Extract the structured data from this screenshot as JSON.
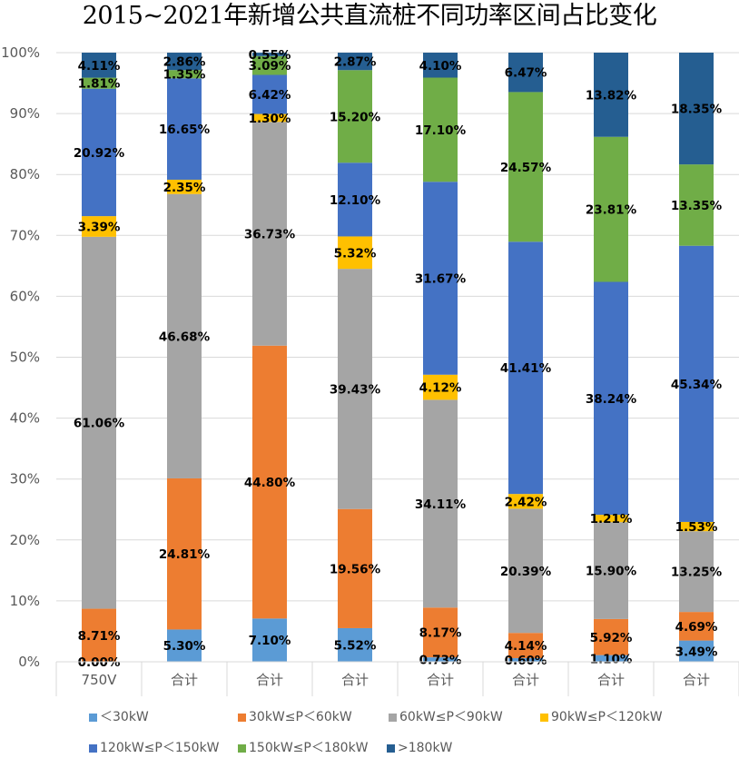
{
  "chart_data": {
    "type": "bar",
    "stacked": true,
    "percent_stacked": true,
    "title": "2015~2021年新增公共直流桩不同功率区间占比变化",
    "xlabel": "",
    "ylabel": "",
    "ylim": [
      0,
      100
    ],
    "yticks": [
      "0%",
      "10%",
      "20%",
      "30%",
      "40%",
      "50%",
      "60%",
      "70%",
      "80%",
      "90%",
      "100%"
    ],
    "grid": true,
    "legend_position": "bottom",
    "categories": [
      "750V",
      "合计",
      "合计",
      "合计",
      "合计",
      "合计",
      "合计",
      "合计"
    ],
    "series": [
      {
        "name": "<30kW",
        "legend_label": "＜30kW",
        "color": "#5B9BD5",
        "values": [
          0.0,
          5.3,
          7.1,
          5.52,
          0.73,
          0.6,
          1.1,
          3.49
        ],
        "labels": [
          "0.00%",
          "5.30%",
          "7.10%",
          "5.52%",
          "0.73%",
          "0.60%",
          "1.10%",
          "3.49%"
        ]
      },
      {
        "name": "30kW≤P<60kW",
        "legend_label": "30kW≤P＜60kW",
        "color": "#ED7D31",
        "values": [
          8.71,
          24.81,
          44.8,
          19.56,
          8.17,
          4.14,
          5.92,
          4.69
        ],
        "labels": [
          "8.71%",
          "24.81%",
          "44.80%",
          "19.56%",
          "8.17%",
          "4.14%",
          "5.92%",
          "4.69%"
        ]
      },
      {
        "name": "60kW≤P<90kW",
        "legend_label": "60kW≤P＜90kW",
        "color": "#A5A5A5",
        "values": [
          61.06,
          46.68,
          36.73,
          39.43,
          34.11,
          20.39,
          15.9,
          13.25
        ],
        "labels": [
          "61.06%",
          "46.68%",
          "36.73%",
          "39.43%",
          "34.11%",
          "20.39%",
          "15.90%",
          "13.25%"
        ]
      },
      {
        "name": "90kW≤P<120kW",
        "legend_label": "90kW≤P＜120kW",
        "color": "#FFC000",
        "values": [
          3.39,
          2.35,
          1.3,
          5.32,
          4.12,
          2.42,
          1.21,
          1.53
        ],
        "labels": [
          "3.39%",
          "2.35%",
          "1.30%",
          "5.32%",
          "4.12%",
          "2.42%",
          "1.21%",
          "1.53%"
        ]
      },
      {
        "name": "120kW≤P<150kW",
        "legend_label": "120kW≤P＜150kW",
        "color": "#4472C4",
        "values": [
          20.92,
          16.65,
          6.42,
          12.1,
          31.67,
          41.41,
          38.24,
          45.34
        ],
        "labels": [
          "20.92%",
          "16.65%",
          "6.42%",
          "12.10%",
          "31.67%",
          "41.41%",
          "38.24%",
          "45.34%"
        ]
      },
      {
        "name": "150kW≤P<180kW",
        "legend_label": "150kW≤P＜180kW",
        "color": "#70AD47",
        "values": [
          1.81,
          1.35,
          3.09,
          15.2,
          17.1,
          24.57,
          23.81,
          13.35
        ],
        "labels": [
          "1.81%",
          "1.35%",
          "3.09%",
          "15.20%",
          "17.10%",
          "24.57%",
          "23.81%",
          "13.35%"
        ]
      },
      {
        "name": ">180kW",
        "legend_label": ">180kW",
        "color": "#255E91",
        "values": [
          4.11,
          2.86,
          0.55,
          2.87,
          4.1,
          6.47,
          13.82,
          18.35
        ],
        "labels": [
          "4.11%",
          "2.86%",
          "0.55%",
          "2.87%",
          "4.10%",
          "6.47%",
          "13.82%",
          "18.35%"
        ]
      }
    ]
  },
  "colors": {
    "gridline": "#D9D9D9",
    "axis_text": "#595959",
    "label_text": "#000000"
  }
}
